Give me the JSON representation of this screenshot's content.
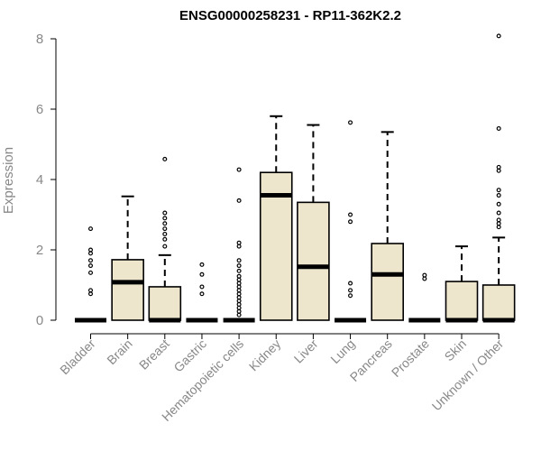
{
  "colors": {
    "box_fill": "#ede6cd",
    "stroke": "#000000",
    "axis_text": "#888888",
    "title_text": "#000000"
  },
  "chart_data": {
    "type": "boxplot",
    "title": "ENSG00000258231 - RP11-362K2.2",
    "xlabel": "",
    "ylabel": "Expression",
    "ylim": [
      0,
      8
    ],
    "yticks": [
      0,
      2,
      4,
      6,
      8
    ],
    "grid": false,
    "legend": "none",
    "categories": [
      "Bladder",
      "Brain",
      "Breast",
      "Gastric",
      "Hematopoietic cells",
      "Kidney",
      "Liver",
      "Lung",
      "Pancreas",
      "Prostate",
      "Skin",
      "Unknown / Other"
    ],
    "boxes": [
      {
        "category": "Bladder",
        "min": 0,
        "q1": 0,
        "median": 0,
        "q3": 0,
        "max": 0,
        "outliers": [
          0.75,
          0.85,
          1.35,
          1.55,
          1.7,
          1.9,
          2.0,
          2.6
        ]
      },
      {
        "category": "Brain",
        "min": 0,
        "q1": 0,
        "median": 1.08,
        "q3": 1.72,
        "max": 3.52,
        "outliers": []
      },
      {
        "category": "Breast",
        "min": 0,
        "q1": 0,
        "median": 0,
        "q3": 0.95,
        "max": 1.85,
        "outliers": [
          2.1,
          2.3,
          2.45,
          2.6,
          2.75,
          2.9,
          3.05,
          4.58
        ]
      },
      {
        "category": "Gastric",
        "min": 0,
        "q1": 0,
        "median": 0,
        "q3": 0,
        "max": 0,
        "outliers": [
          0.75,
          0.95,
          1.3,
          1.58
        ]
      },
      {
        "category": "Hematopoietic cells",
        "min": 0,
        "q1": 0,
        "median": 0,
        "q3": 0,
        "max": 0,
        "outliers": [
          0.15,
          0.25,
          0.35,
          0.45,
          0.55,
          0.65,
          0.75,
          0.85,
          0.95,
          1.05,
          1.15,
          1.25,
          1.4,
          1.55,
          1.7,
          2.1,
          2.2,
          3.4,
          4.28
        ]
      },
      {
        "category": "Kidney",
        "min": 0,
        "q1": 0,
        "median": 3.55,
        "q3": 4.2,
        "max": 5.8,
        "outliers": []
      },
      {
        "category": "Liver",
        "min": 0,
        "q1": 0,
        "median": 1.52,
        "q3": 3.35,
        "max": 5.55,
        "outliers": []
      },
      {
        "category": "Lung",
        "min": 0,
        "q1": 0,
        "median": 0,
        "q3": 0,
        "max": 0,
        "outliers": [
          0.7,
          0.85,
          1.05,
          2.8,
          3.0,
          5.62
        ]
      },
      {
        "category": "Pancreas",
        "min": 0,
        "q1": 0,
        "median": 1.3,
        "q3": 2.18,
        "max": 5.35,
        "outliers": []
      },
      {
        "category": "Prostate",
        "min": 0,
        "q1": 0,
        "median": 0,
        "q3": 0,
        "max": 0,
        "outliers": [
          1.18,
          1.28
        ]
      },
      {
        "category": "Skin",
        "min": 0,
        "q1": 0,
        "median": 0,
        "q3": 1.1,
        "max": 2.1,
        "outliers": []
      },
      {
        "category": "Unknown / Other",
        "min": 0,
        "q1": 0,
        "median": 0,
        "q3": 1.0,
        "max": 2.35,
        "outliers": [
          2.65,
          2.75,
          2.85,
          3.05,
          3.3,
          3.55,
          3.7,
          4.25,
          4.35,
          5.45,
          8.08
        ]
      }
    ]
  }
}
